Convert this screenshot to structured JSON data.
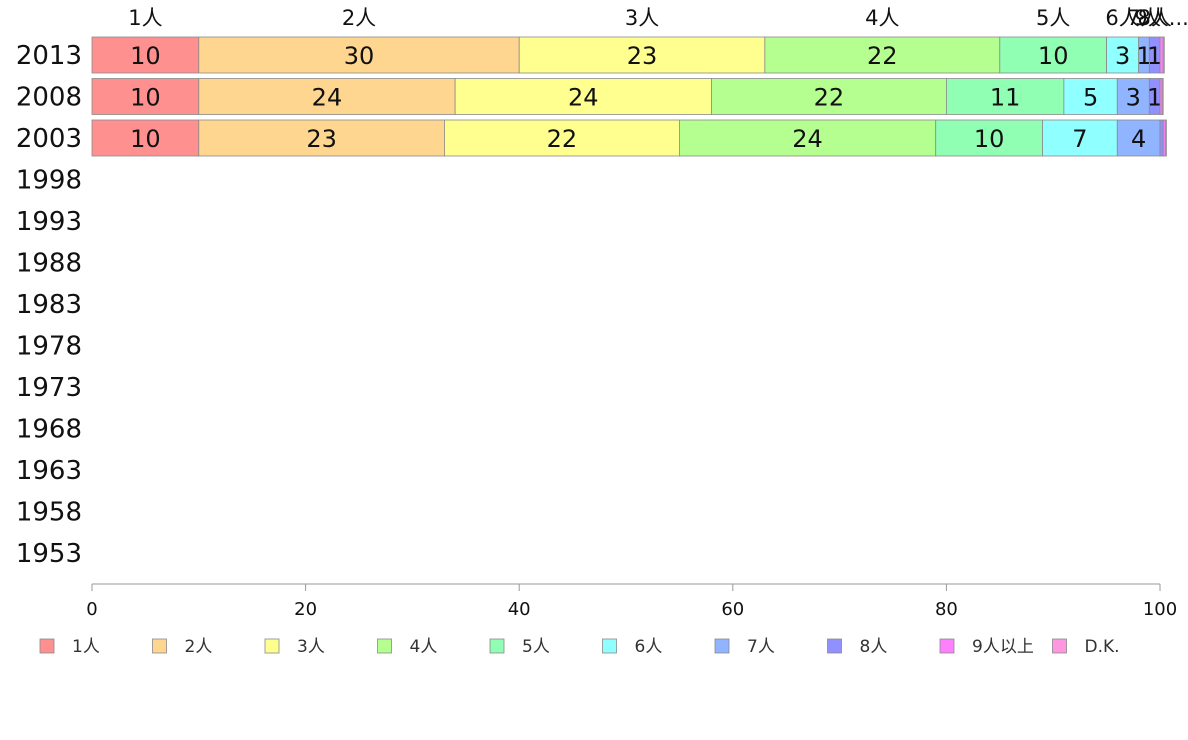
{
  "chart_data": {
    "type": "bar",
    "orientation": "horizontal",
    "stacked": true,
    "title": "",
    "xlabel": "",
    "ylabel": "",
    "xlim": [
      0,
      100
    ],
    "x_ticks": [
      0,
      20,
      40,
      60,
      80,
      100
    ],
    "categories": [
      "2013",
      "2008",
      "2003",
      "1998",
      "1993",
      "1988",
      "1983",
      "1978",
      "1973",
      "1968",
      "1963",
      "1958",
      "1953"
    ],
    "top_labels": [
      "1人",
      "2人",
      "3人",
      "4人",
      "5人",
      "6人",
      "7人",
      "8人",
      "9人..."
    ],
    "legend_position": "bottom",
    "grid": false,
    "series": [
      {
        "name": "1人",
        "color": "#ff9090",
        "values": [
          10,
          10,
          10,
          null,
          null,
          null,
          null,
          null,
          null,
          null,
          null,
          null,
          null
        ]
      },
      {
        "name": "2人",
        "color": "#ffd690",
        "values": [
          30,
          24,
          23,
          null,
          null,
          null,
          null,
          null,
          null,
          null,
          null,
          null,
          null
        ]
      },
      {
        "name": "3人",
        "color": "#ffff90",
        "values": [
          23,
          24,
          22,
          null,
          null,
          null,
          null,
          null,
          null,
          null,
          null,
          null,
          null
        ]
      },
      {
        "name": "4人",
        "color": "#b4ff90",
        "values": [
          22,
          22,
          24,
          null,
          null,
          null,
          null,
          null,
          null,
          null,
          null,
          null,
          null
        ]
      },
      {
        "name": "5人",
        "color": "#90ffb4",
        "values": [
          10,
          11,
          10,
          null,
          null,
          null,
          null,
          null,
          null,
          null,
          null,
          null,
          null
        ]
      },
      {
        "name": "6人",
        "color": "#90ffff",
        "values": [
          3,
          5,
          7,
          null,
          null,
          null,
          null,
          null,
          null,
          null,
          null,
          null,
          null
        ]
      },
      {
        "name": "7人",
        "color": "#90b4ff",
        "values": [
          1,
          3,
          4,
          null,
          null,
          null,
          null,
          null,
          null,
          null,
          null,
          null,
          null
        ]
      },
      {
        "name": "8人",
        "color": "#9090ff",
        "values": [
          1,
          1,
          0.3,
          null,
          null,
          null,
          null,
          null,
          null,
          null,
          null,
          null,
          null
        ]
      },
      {
        "name": "9人以上",
        "color": "#ff80ff",
        "values": [
          0.3,
          0.2,
          0.2,
          null,
          null,
          null,
          null,
          null,
          null,
          null,
          null,
          null,
          null
        ]
      },
      {
        "name": "D.K.",
        "color": "#ff96e0",
        "values": [
          0.1,
          0.1,
          0.1,
          null,
          null,
          null,
          null,
          null,
          null,
          null,
          null,
          null,
          null
        ]
      }
    ]
  }
}
